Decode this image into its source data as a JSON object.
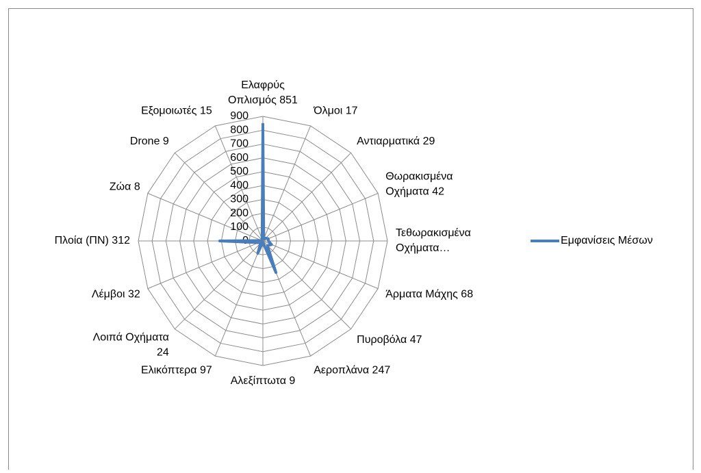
{
  "chart_data": {
    "type": "radar",
    "categories": [
      "Ελαφρύς Οπλισμός 851",
      "Όλμοι 17",
      "Αντιαρματικά 29",
      "Θωρακισμένα Οχήματα 42",
      "Τεθωρακισμένα Οχήματα…",
      "Άρματα Μάχης 68",
      "Πυροβόλα 47",
      "Αεροπλάνα 247",
      "Αλεξίπτωτα 9",
      "Ελικόπτερα 97",
      "Λοιπά Οχήματα 24",
      "Λέμβοι 32",
      "Πλοία (ΠΝ) 312",
      "Ζώα 8",
      "Drone 9",
      "Εξομοιωτές 15"
    ],
    "series": [
      {
        "name": "Εμφανίσεις Μέσων",
        "color": "#4a7ebb",
        "values": [
          851,
          17,
          29,
          42,
          40,
          68,
          47,
          247,
          9,
          97,
          24,
          32,
          312,
          8,
          9,
          15
        ]
      }
    ],
    "ylim": [
      0,
      900
    ],
    "yticks": [
      0,
      100,
      200,
      300,
      400,
      500,
      600,
      700,
      800,
      900
    ],
    "grid": true,
    "legend": "right"
  }
}
